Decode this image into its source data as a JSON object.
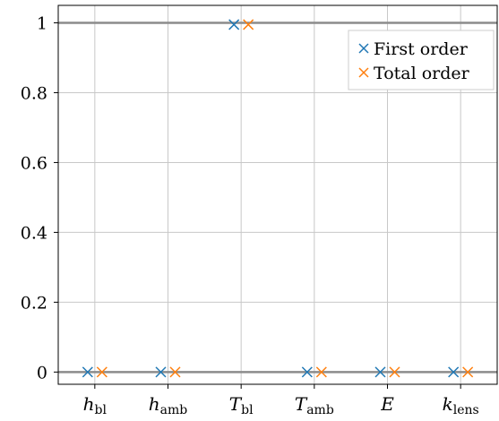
{
  "chart_data": {
    "type": "scatter",
    "categories": [
      {
        "main": "h",
        "sub": "bl"
      },
      {
        "main": "h",
        "sub": "amb"
      },
      {
        "main": "T",
        "sub": "bl"
      },
      {
        "main": "T",
        "sub": "amb"
      },
      {
        "main": "E",
        "sub": ""
      },
      {
        "main": "k",
        "sub": "lens"
      }
    ],
    "series": [
      {
        "name": "First order",
        "color": "#1f77b4",
        "marker": "x",
        "values": [
          0,
          0,
          0.995,
          0,
          0,
          0
        ]
      },
      {
        "name": "Total order",
        "color": "#ff7f0e",
        "marker": "x",
        "values": [
          0,
          0,
          0.995,
          0,
          0,
          0
        ]
      }
    ],
    "reference_lines": [
      0,
      1
    ],
    "ylim": [
      -0.035,
      1.05
    ],
    "yticks": [
      0,
      0.2,
      0.4,
      0.6,
      0.8,
      1
    ],
    "ytick_labels": [
      "0",
      "0.2",
      "0.4",
      "0.6",
      "0.8",
      "1"
    ],
    "grid": true,
    "legend_position": "top-right",
    "title": "",
    "xlabel": "",
    "ylabel": ""
  }
}
